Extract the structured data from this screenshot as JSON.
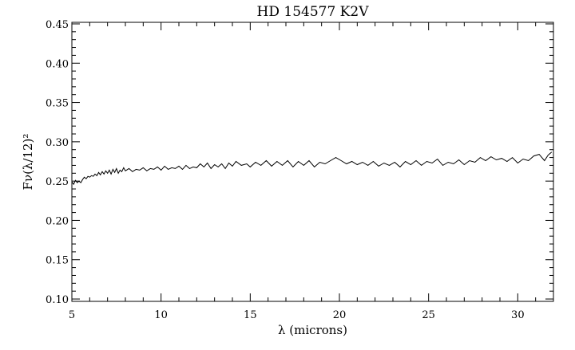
{
  "chart_data": {
    "type": "line",
    "title": "HD 154577 K2V",
    "xlabel": "λ (microns)",
    "ylabel": "Fν(λ/12)²",
    "xlim": [
      5,
      32
    ],
    "ylim": [
      0.097,
      0.452
    ],
    "x_ticks": [
      5,
      10,
      15,
      20,
      25,
      30
    ],
    "x_tick_labels": [
      "5",
      "10",
      "15",
      "20",
      "25",
      "30"
    ],
    "y_ticks": [
      0.1,
      0.15,
      0.2,
      0.25,
      0.3,
      0.35,
      0.4,
      0.45
    ],
    "y_tick_labels": [
      "0.10",
      "0.15",
      "0.20",
      "0.25",
      "0.30",
      "0.35",
      "0.40",
      "0.45"
    ],
    "grid": false,
    "series": [
      {
        "x": [
          5.0,
          5.1,
          5.2,
          5.3,
          5.4,
          5.5,
          5.6,
          5.7,
          5.8,
          5.9,
          6.0,
          6.1,
          6.2,
          6.3,
          6.4,
          6.5,
          6.6,
          6.7,
          6.8,
          6.9,
          7.0,
          7.1,
          7.2,
          7.3,
          7.4,
          7.5,
          7.6,
          7.7,
          7.8,
          7.9,
          8.0,
          8.2,
          8.4,
          8.6,
          8.8,
          9.0,
          9.2,
          9.4,
          9.6,
          9.8,
          10.0,
          10.2,
          10.4,
          10.6,
          10.8,
          11.0,
          11.2,
          11.4,
          11.6,
          11.8,
          12.0,
          12.2,
          12.4,
          12.6,
          12.8,
          13.0,
          13.2,
          13.4,
          13.6,
          13.8,
          14.0,
          14.2,
          14.5,
          14.8,
          15.0,
          15.3,
          15.6,
          15.9,
          16.2,
          16.5,
          16.8,
          17.1,
          17.4,
          17.7,
          18.0,
          18.3,
          18.6,
          18.9,
          19.2,
          19.5,
          19.8,
          20.1,
          20.4,
          20.7,
          21.0,
          21.3,
          21.6,
          21.9,
          22.2,
          22.5,
          22.8,
          23.1,
          23.4,
          23.7,
          24.0,
          24.3,
          24.6,
          24.9,
          25.2,
          25.5,
          25.8,
          26.1,
          26.4,
          26.7,
          27.0,
          27.3,
          27.6,
          27.9,
          28.2,
          28.5,
          28.8,
          29.1,
          29.4,
          29.7,
          30.0,
          30.3,
          30.6,
          30.9,
          31.2,
          31.5,
          31.7,
          31.9
        ],
        "y": [
          0.249,
          0.246,
          0.251,
          0.248,
          0.25,
          0.248,
          0.252,
          0.255,
          0.253,
          0.256,
          0.255,
          0.257,
          0.256,
          0.259,
          0.257,
          0.261,
          0.258,
          0.262,
          0.259,
          0.263,
          0.26,
          0.264,
          0.259,
          0.265,
          0.261,
          0.266,
          0.26,
          0.264,
          0.262,
          0.267,
          0.263,
          0.266,
          0.262,
          0.265,
          0.264,
          0.267,
          0.263,
          0.266,
          0.265,
          0.268,
          0.264,
          0.269,
          0.265,
          0.267,
          0.266,
          0.269,
          0.265,
          0.27,
          0.266,
          0.268,
          0.267,
          0.272,
          0.268,
          0.273,
          0.266,
          0.271,
          0.268,
          0.272,
          0.266,
          0.273,
          0.269,
          0.275,
          0.27,
          0.272,
          0.268,
          0.274,
          0.27,
          0.276,
          0.269,
          0.275,
          0.27,
          0.276,
          0.268,
          0.275,
          0.27,
          0.276,
          0.268,
          0.274,
          0.272,
          0.276,
          0.28,
          0.276,
          0.272,
          0.275,
          0.271,
          0.274,
          0.27,
          0.275,
          0.269,
          0.273,
          0.27,
          0.274,
          0.268,
          0.275,
          0.271,
          0.276,
          0.27,
          0.275,
          0.273,
          0.278,
          0.27,
          0.274,
          0.272,
          0.277,
          0.271,
          0.276,
          0.274,
          0.28,
          0.276,
          0.281,
          0.277,
          0.279,
          0.275,
          0.28,
          0.273,
          0.278,
          0.276,
          0.282,
          0.284,
          0.276,
          0.283,
          0.287
        ]
      }
    ]
  }
}
